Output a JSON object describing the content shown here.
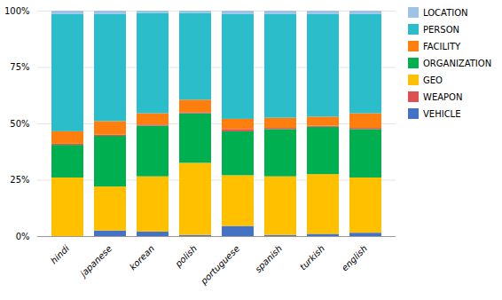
{
  "chart_data": {
    "type": "bar",
    "stacked": true,
    "categories": [
      "hindi",
      "japanese",
      "korean",
      "polish",
      "portuguese",
      "spanish",
      "turkish",
      "english"
    ],
    "series": [
      {
        "name": "VEHICLE",
        "color": "#4472C4",
        "values": [
          0.0,
          0.025,
          0.02,
          0.005,
          0.045,
          0.005,
          0.01,
          0.015
        ]
      },
      {
        "name": "GEO",
        "color": "#FFC000",
        "values": [
          0.26,
          0.195,
          0.245,
          0.32,
          0.225,
          0.26,
          0.265,
          0.245
        ]
      },
      {
        "name": "ORGANIZATION",
        "color": "#00B050",
        "values": [
          0.145,
          0.225,
          0.225,
          0.22,
          0.195,
          0.21,
          0.21,
          0.215
        ]
      },
      {
        "name": "WEAPON",
        "color": "#E05050",
        "values": [
          0.005,
          0.005,
          0.005,
          0.005,
          0.01,
          0.005,
          0.005,
          0.005
        ]
      },
      {
        "name": "FACILITY",
        "color": "#FF7F0E",
        "values": [
          0.055,
          0.06,
          0.05,
          0.055,
          0.045,
          0.045,
          0.04,
          0.065
        ]
      },
      {
        "name": "PERSON",
        "color": "#2BBDCA",
        "values": [
          0.52,
          0.475,
          0.445,
          0.385,
          0.465,
          0.46,
          0.455,
          0.44
        ]
      },
      {
        "name": "LOCATION",
        "color": "#9DC3E6",
        "values": [
          0.015,
          0.015,
          0.01,
          0.01,
          0.015,
          0.015,
          0.015,
          0.015
        ]
      }
    ],
    "legend_order": [
      "LOCATION",
      "PERSON",
      "FACILITY",
      "ORGANIZATION",
      "GEO",
      "WEAPON",
      "VEHICLE"
    ],
    "ylim": [
      0,
      1.0
    ],
    "yticks": [
      {
        "value": 0,
        "label": "0%"
      },
      {
        "value": 0.25,
        "label": "25%"
      },
      {
        "value": 0.5,
        "label": "50%"
      },
      {
        "value": 0.75,
        "label": "75%"
      },
      {
        "value": 1.0,
        "label": "100%"
      }
    ],
    "grid": true,
    "legend": "right"
  }
}
